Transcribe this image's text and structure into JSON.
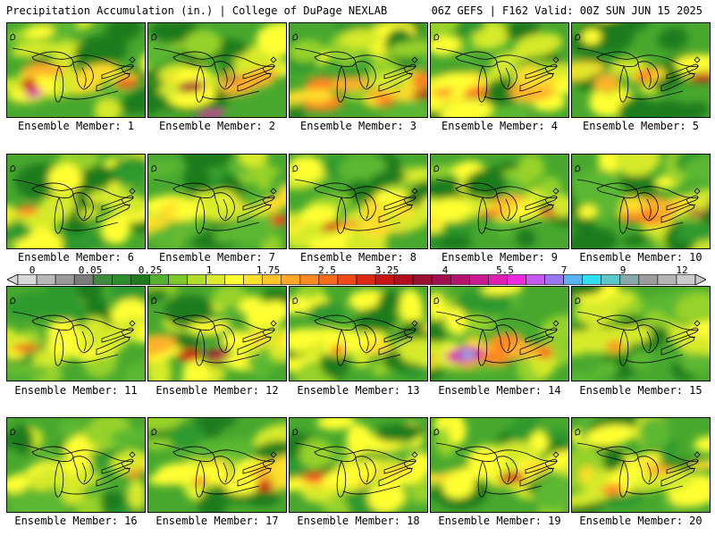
{
  "header": {
    "title": "Precipitation Accumulation (in.) | College of DuPage NEXLAB",
    "run_info": "06Z GEFS | F162 Valid: 00Z SUN JUN 15 2025"
  },
  "colors": {
    "scale": [
      "#d8d8d8",
      "#b8b8b8",
      "#9a9a9a",
      "#7c7c7c",
      "#3e8a3e",
      "#2c8f2c",
      "#1f7a1f",
      "#56b12e",
      "#7cc828",
      "#b2dc2a",
      "#dcec2c",
      "#ffff32",
      "#ffe12c",
      "#ffc529",
      "#ffa826",
      "#ff8a22",
      "#fa6a1c",
      "#f04818",
      "#de2a14",
      "#c81414",
      "#b0101e",
      "#981032",
      "#a01050",
      "#b4146c",
      "#cc1a90",
      "#e020b4",
      "#f02ae0",
      "#c858f2",
      "#9878f0",
      "#58b4f0",
      "#30e0f0",
      "#5cc8c8",
      "#8aa8a8",
      "#9c9c9c",
      "#b4b4b4",
      "#cccccc"
    ]
  },
  "colorbar": {
    "tick_labels": [
      "0",
      "0.05",
      "0.25",
      "1",
      "1.75",
      "2.5",
      "3.25",
      "4",
      "5.5",
      "7",
      "9",
      "12"
    ]
  },
  "members": [
    {
      "label": "Ensemble Member: 1"
    },
    {
      "label": "Ensemble Member: 2"
    },
    {
      "label": "Ensemble Member: 3"
    },
    {
      "label": "Ensemble Member: 4"
    },
    {
      "label": "Ensemble Member: 5"
    },
    {
      "label": "Ensemble Member: 6"
    },
    {
      "label": "Ensemble Member: 7"
    },
    {
      "label": "Ensemble Member: 8"
    },
    {
      "label": "Ensemble Member: 9"
    },
    {
      "label": "Ensemble Member: 10"
    },
    {
      "label": "Ensemble Member: 11"
    },
    {
      "label": "Ensemble Member: 12"
    },
    {
      "label": "Ensemble Member: 13"
    },
    {
      "label": "Ensemble Member: 14"
    },
    {
      "label": "Ensemble Member: 15"
    },
    {
      "label": "Ensemble Member: 16"
    },
    {
      "label": "Ensemble Member: 17"
    },
    {
      "label": "Ensemble Member: 18"
    },
    {
      "label": "Ensemble Member: 19"
    },
    {
      "label": "Ensemble Member: 20"
    }
  ]
}
